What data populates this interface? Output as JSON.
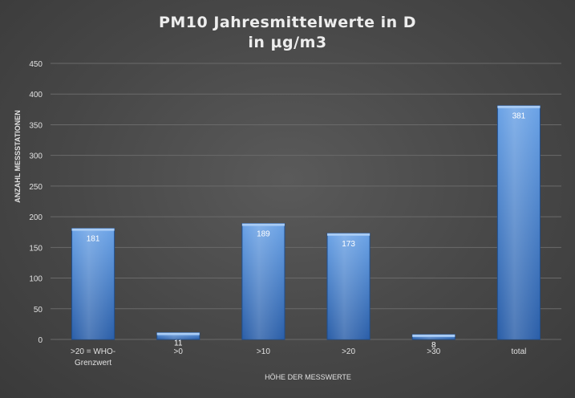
{
  "chart_data": {
    "type": "bar",
    "title_lines": [
      "PM10 Jahresmittelwerte  in  D",
      "in  µg/m3"
    ],
    "xlabel": "HÖHE DER MESSWERTE",
    "ylabel": "ANZAHL MESSSTATIONEN",
    "categories": [
      ">20 = WHO-Grenzwert",
      ">0",
      ">10",
      ">20",
      ">30",
      "total"
    ],
    "category_lines": [
      [
        ">20 = WHO-",
        "Grenzwert"
      ],
      [
        ">0"
      ],
      [
        ">10"
      ],
      [
        ">20"
      ],
      [
        ">30"
      ],
      [
        "total"
      ]
    ],
    "values": [
      181,
      11,
      189,
      173,
      8,
      381
    ],
    "ylim": [
      0,
      450
    ],
    "yticks": [
      0,
      50,
      100,
      150,
      200,
      250,
      300,
      350,
      400,
      450
    ],
    "grid": true,
    "legend": "none",
    "colors": {
      "bar_top": "#6aa2e6",
      "bar_bottom": "#2a5ea8",
      "bar_edge": "#1f4f90",
      "grid": "#6a6a6a",
      "text": "#e0e0e0",
      "data_label": "#ffffff"
    }
  }
}
